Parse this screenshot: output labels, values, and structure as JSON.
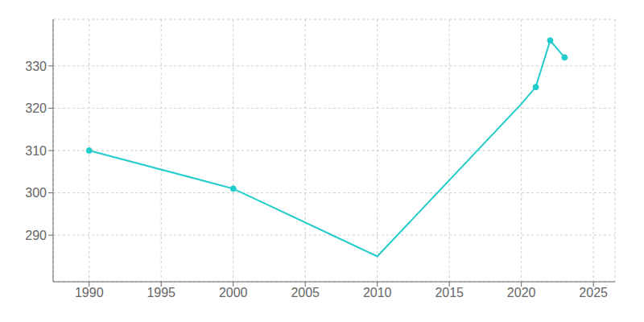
{
  "chart_data": {
    "type": "line",
    "x": [
      1990,
      2000,
      2010,
      2020,
      2021,
      2022,
      2023
    ],
    "series": [
      {
        "type": "line",
        "color": "#22CCCC",
        "values": [
          310,
          301,
          285,
          321,
          325,
          336,
          332
        ]
      },
      {
        "type": "scatter",
        "color": "#22CCCC",
        "values": [
          310,
          301,
          null,
          null,
          325,
          336,
          332
        ]
      }
    ],
    "xlim": [
      1987.5,
      2026.5
    ],
    "ylim": [
      279,
      341
    ],
    "xticks": [
      1990,
      1995,
      2000,
      2005,
      2010,
      2015,
      2020,
      2025
    ],
    "yticks": [
      290,
      300,
      310,
      320,
      330
    ],
    "grid": true
  }
}
